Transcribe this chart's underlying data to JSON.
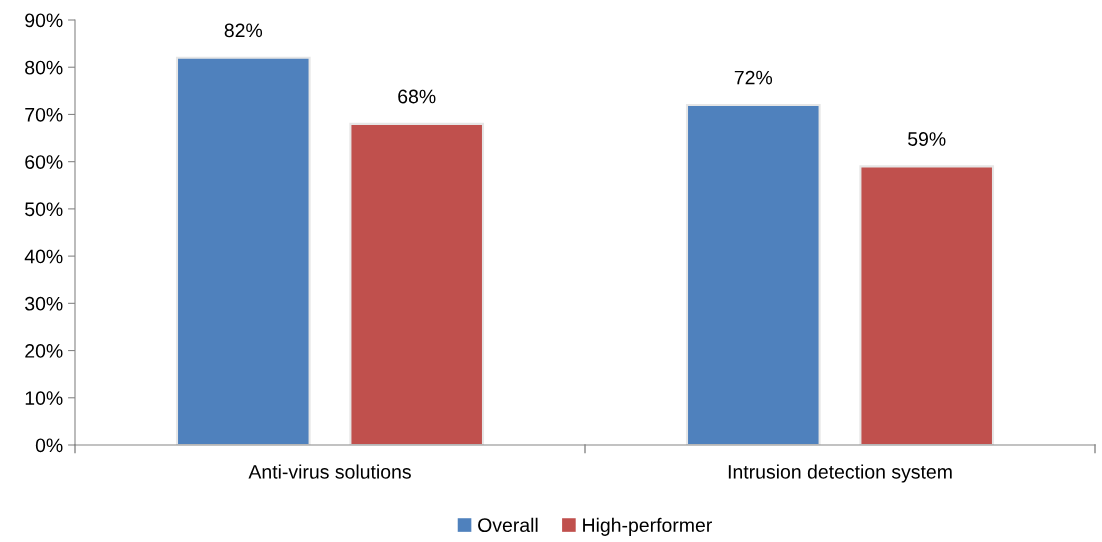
{
  "chart_data": {
    "type": "bar",
    "categories": [
      "Anti-virus solutions",
      "Intrusion detection system"
    ],
    "series": [
      {
        "name": "Overall",
        "color": "#4f81bd",
        "values": [
          82,
          72
        ]
      },
      {
        "name": "High-performer",
        "color": "#c0504d",
        "values": [
          68,
          59
        ]
      }
    ],
    "ylim": [
      0,
      90
    ],
    "yticks": [
      {
        "value": 0,
        "label": "0%"
      },
      {
        "value": 10,
        "label": "10%"
      },
      {
        "value": 20,
        "label": "20%"
      },
      {
        "value": 30,
        "label": "30%"
      },
      {
        "value": 40,
        "label": "40%"
      },
      {
        "value": 50,
        "label": "50%"
      },
      {
        "value": 60,
        "label": "60%"
      },
      {
        "value": 70,
        "label": "70%"
      },
      {
        "value": 80,
        "label": "80%"
      },
      {
        "value": 90,
        "label": "90%"
      }
    ],
    "value_labels": [
      [
        "82%",
        "72%"
      ],
      [
        "68%",
        "59%"
      ]
    ],
    "grid": false,
    "legend": "bottom"
  }
}
